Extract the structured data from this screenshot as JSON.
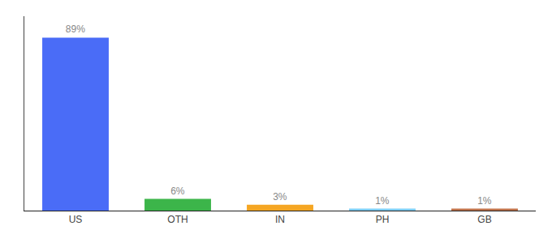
{
  "chart_data": {
    "type": "bar",
    "categories": [
      "US",
      "OTH",
      "IN",
      "PH",
      "GB"
    ],
    "values": [
      89,
      6,
      3,
      1,
      1
    ],
    "value_labels": [
      "89%",
      "6%",
      "3%",
      "1%",
      "1%"
    ],
    "colors": [
      "#4a6cf7",
      "#3cb54a",
      "#f5a623",
      "#7ecef4",
      "#c0724a"
    ],
    "data_labels": true,
    "ylim": [
      0,
      100
    ],
    "grid": false,
    "tick_labels": "x"
  }
}
